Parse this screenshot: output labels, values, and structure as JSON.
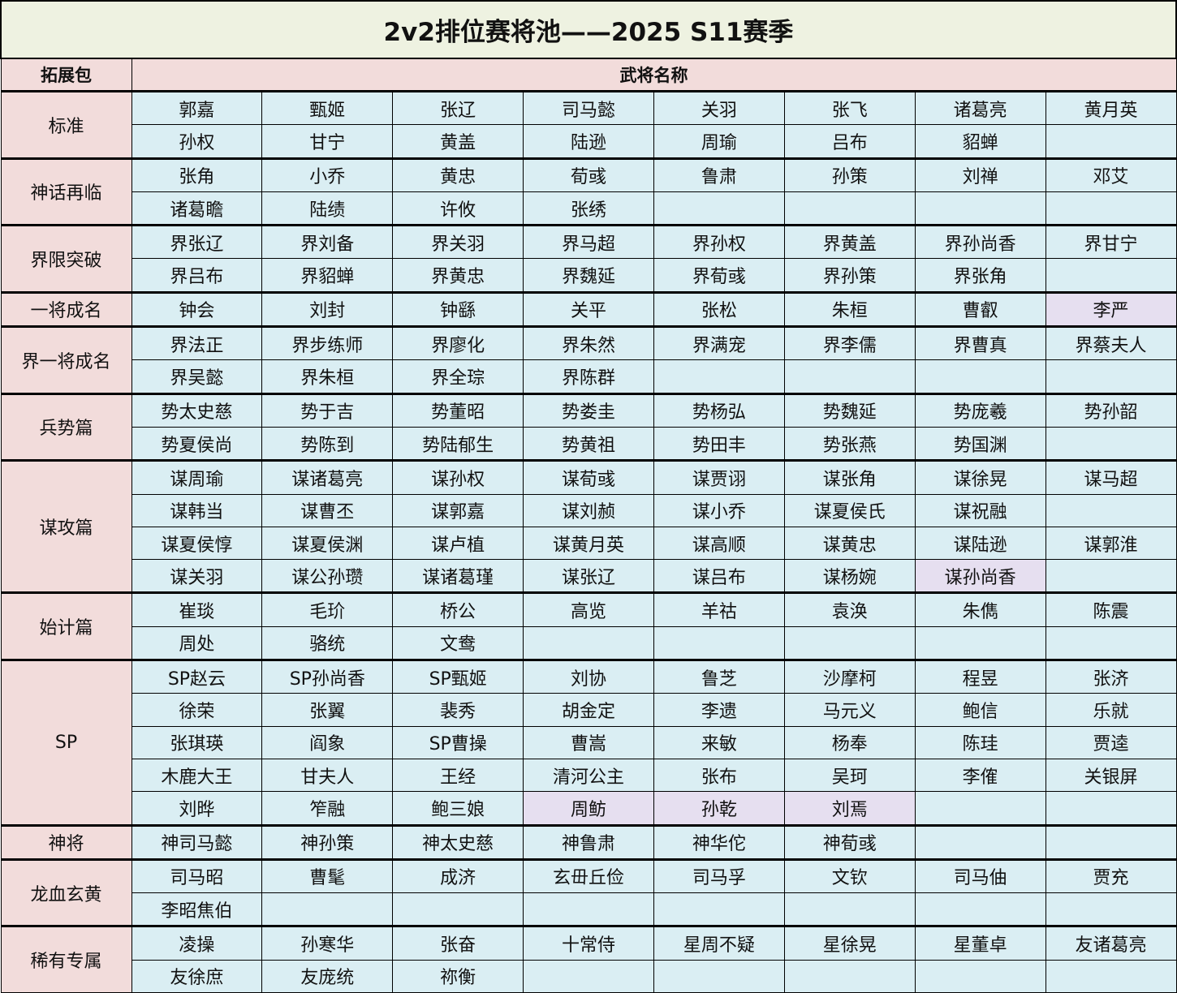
{
  "title": "2v2排位赛将池——2025 S11赛季",
  "header": {
    "package": "拓展包",
    "generals": "武将名称"
  },
  "colors": {
    "title_bg": "#eef2e1",
    "header_bg": "#f2dcdb",
    "cell_bg": "#daeef3",
    "highlight_bg": "#e6dff0"
  },
  "groups": [
    {
      "name": "标准",
      "rows": [
        [
          "郭嘉",
          "甄姬",
          "张辽",
          "司马懿",
          "关羽",
          "张飞",
          "诸葛亮",
          "黄月英"
        ],
        [
          "孙权",
          "甘宁",
          "黄盖",
          "陆逊",
          "周瑜",
          "吕布",
          "貂蝉",
          ""
        ]
      ]
    },
    {
      "name": "神话再临",
      "rows": [
        [
          "张角",
          "小乔",
          "黄忠",
          "荀彧",
          "鲁肃",
          "孙策",
          "刘禅",
          "邓艾"
        ],
        [
          "诸葛瞻",
          "陆绩",
          "许攸",
          "张绣",
          "",
          "",
          "",
          ""
        ]
      ]
    },
    {
      "name": "界限突破",
      "rows": [
        [
          "界张辽",
          "界刘备",
          "界关羽",
          "界马超",
          "界孙权",
          "界黄盖",
          "界孙尚香",
          "界甘宁"
        ],
        [
          "界吕布",
          "界貂蝉",
          "界黄忠",
          "界魏延",
          "界荀彧",
          "界孙策",
          "界张角",
          ""
        ]
      ]
    },
    {
      "name": "一将成名",
      "rows": [
        [
          "钟会",
          "刘封",
          "钟繇",
          "关平",
          "张松",
          "朱桓",
          "曹叡",
          "李严"
        ]
      ]
    },
    {
      "name": "界一将成名",
      "rows": [
        [
          "界法正",
          "界步练师",
          "界廖化",
          "界朱然",
          "界满宠",
          "界李儒",
          "界曹真",
          "界蔡夫人"
        ],
        [
          "界吴懿",
          "界朱桓",
          "界全琮",
          "界陈群",
          "",
          "",
          "",
          ""
        ]
      ]
    },
    {
      "name": "兵势篇",
      "rows": [
        [
          "势太史慈",
          "势于吉",
          "势董昭",
          "势娄圭",
          "势杨弘",
          "势魏延",
          "势庞羲",
          "势孙韶"
        ],
        [
          "势夏侯尚",
          "势陈到",
          "势陆郁生",
          "势黄祖",
          "势田丰",
          "势张燕",
          "势国渊",
          ""
        ]
      ]
    },
    {
      "name": "谋攻篇",
      "rows": [
        [
          "谋周瑜",
          "谋诸葛亮",
          "谋孙权",
          "谋荀彧",
          "谋贾诩",
          "谋张角",
          "谋徐晃",
          "谋马超"
        ],
        [
          "谋韩当",
          "谋曹丕",
          "谋郭嘉",
          "谋刘赪",
          "谋小乔",
          "谋夏侯氏",
          "谋祝融",
          ""
        ],
        [
          "谋夏侯惇",
          "谋夏侯渊",
          "谋卢植",
          "谋黄月英",
          "谋高顺",
          "谋黄忠",
          "谋陆逊",
          "谋郭淮"
        ],
        [
          "谋关羽",
          "谋公孙瓒",
          "谋诸葛瑾",
          "谋张辽",
          "谋吕布",
          "谋杨婉",
          "谋孙尚香",
          ""
        ]
      ]
    },
    {
      "name": "始计篇",
      "rows": [
        [
          "崔琰",
          "毛玠",
          "桥公",
          "高览",
          "羊祜",
          "袁涣",
          "朱儁",
          "陈震"
        ],
        [
          "周处",
          "骆统",
          "文鸯",
          "",
          "",
          "",
          "",
          ""
        ]
      ]
    },
    {
      "name": "SP",
      "rows": [
        [
          "SP赵云",
          "SP孙尚香",
          "SP甄姬",
          "刘协",
          "鲁芝",
          "沙摩柯",
          "程昱",
          "张济"
        ],
        [
          "徐荣",
          "张翼",
          "裴秀",
          "胡金定",
          "李遗",
          "马元义",
          "鲍信",
          "乐就"
        ],
        [
          "张琪瑛",
          "阎象",
          "SP曹操",
          "曹嵩",
          "来敏",
          "杨奉",
          "陈珪",
          "贾逵"
        ],
        [
          "木鹿大王",
          "甘夫人",
          "王经",
          "清河公主",
          "张布",
          "吴珂",
          "李傕",
          "关银屏"
        ],
        [
          "刘晔",
          "笮融",
          "鲍三娘",
          "周鲂",
          "孙乾",
          "刘焉",
          "",
          ""
        ]
      ]
    },
    {
      "name": "神将",
      "rows": [
        [
          "神司马懿",
          "神孙策",
          "神太史慈",
          "神鲁肃",
          "神华佗",
          "神荀彧",
          "",
          ""
        ]
      ]
    },
    {
      "name": "龙血玄黄",
      "rows": [
        [
          "司马昭",
          "曹髦",
          "成济",
          "玄毌丘俭",
          "司马孚",
          "文钦",
          "司马伷",
          "贾充"
        ],
        [
          "李昭焦伯",
          "",
          "",
          "",
          "",
          "",
          "",
          ""
        ]
      ]
    },
    {
      "name": "稀有专属",
      "rows": [
        [
          "凌操",
          "孙寒华",
          "张奋",
          "十常侍",
          "星周不疑",
          "星徐晃",
          "星董卓",
          "友诸葛亮"
        ],
        [
          "友徐庶",
          "友庞统",
          "祢衡",
          "",
          "",
          "",
          "",
          ""
        ]
      ]
    }
  ],
  "highlighted": [
    "李严",
    "谋孙尚香",
    "周鲂",
    "孙乾",
    "刘焉"
  ]
}
